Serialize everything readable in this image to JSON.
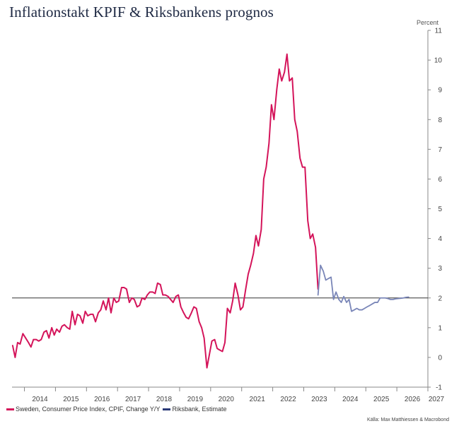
{
  "chart_data": {
    "type": "line",
    "title": "Inflationstakt KPIF & Riksbankens prognos",
    "unit_label": "Percent",
    "source": "Källa: Max Matthiessen & Macrobond",
    "x_range": [
      2013.6,
      2027.0
    ],
    "x_ticks": [
      "2014",
      "2015",
      "2016",
      "2017",
      "2018",
      "2019",
      "2020",
      "2021",
      "2022",
      "2023",
      "2024",
      "2025",
      "2026",
      "2027"
    ],
    "ylim": [
      -1,
      11
    ],
    "y_ticks": [
      "-1",
      "0",
      "1",
      "2",
      "3",
      "4",
      "5",
      "6",
      "7",
      "8",
      "9",
      "10",
      "11"
    ],
    "reference_line": 2,
    "legend_position": "bottom-left",
    "colors": {
      "kpif": "#d4145a",
      "riksbank": "#7a86b8",
      "reference": "#333333",
      "axis": "#888888"
    },
    "series": [
      {
        "name": "Sweden, Consumer Price Index, CPIF, Change Y/Y",
        "color": "#d4145a",
        "points": [
          [
            2013.62,
            0.4
          ],
          [
            2013.7,
            0.0
          ],
          [
            2013.78,
            0.5
          ],
          [
            2013.86,
            0.45
          ],
          [
            2013.95,
            0.8
          ],
          [
            2014.04,
            0.65
          ],
          [
            2014.13,
            0.5
          ],
          [
            2014.21,
            0.35
          ],
          [
            2014.29,
            0.6
          ],
          [
            2014.38,
            0.6
          ],
          [
            2014.46,
            0.55
          ],
          [
            2014.54,
            0.6
          ],
          [
            2014.63,
            0.85
          ],
          [
            2014.71,
            0.9
          ],
          [
            2014.79,
            0.65
          ],
          [
            2014.88,
            1.0
          ],
          [
            2014.96,
            0.75
          ],
          [
            2015.04,
            0.95
          ],
          [
            2015.13,
            0.85
          ],
          [
            2015.21,
            1.05
          ],
          [
            2015.29,
            1.1
          ],
          [
            2015.38,
            1.0
          ],
          [
            2015.46,
            0.95
          ],
          [
            2015.54,
            1.55
          ],
          [
            2015.63,
            1.1
          ],
          [
            2015.71,
            1.45
          ],
          [
            2015.79,
            1.4
          ],
          [
            2015.88,
            1.15
          ],
          [
            2015.96,
            1.55
          ],
          [
            2016.04,
            1.4
          ],
          [
            2016.13,
            1.45
          ],
          [
            2016.21,
            1.45
          ],
          [
            2016.29,
            1.2
          ],
          [
            2016.38,
            1.5
          ],
          [
            2016.46,
            1.6
          ],
          [
            2016.54,
            1.9
          ],
          [
            2016.63,
            1.6
          ],
          [
            2016.71,
            2.0
          ],
          [
            2016.79,
            1.5
          ],
          [
            2016.88,
            2.0
          ],
          [
            2016.96,
            1.85
          ],
          [
            2017.04,
            1.9
          ],
          [
            2017.13,
            2.35
          ],
          [
            2017.21,
            2.35
          ],
          [
            2017.29,
            2.3
          ],
          [
            2017.38,
            1.85
          ],
          [
            2017.46,
            2.0
          ],
          [
            2017.54,
            1.95
          ],
          [
            2017.63,
            1.7
          ],
          [
            2017.71,
            1.75
          ],
          [
            2017.79,
            2.0
          ],
          [
            2017.88,
            1.95
          ],
          [
            2017.96,
            2.1
          ],
          [
            2018.04,
            2.2
          ],
          [
            2018.13,
            2.2
          ],
          [
            2018.21,
            2.15
          ],
          [
            2018.29,
            2.5
          ],
          [
            2018.38,
            2.45
          ],
          [
            2018.46,
            2.1
          ],
          [
            2018.54,
            2.1
          ],
          [
            2018.63,
            2.05
          ],
          [
            2018.71,
            1.95
          ],
          [
            2018.79,
            1.85
          ],
          [
            2018.88,
            2.05
          ],
          [
            2018.96,
            2.1
          ],
          [
            2019.04,
            1.7
          ],
          [
            2019.13,
            1.5
          ],
          [
            2019.21,
            1.35
          ],
          [
            2019.29,
            1.3
          ],
          [
            2019.38,
            1.5
          ],
          [
            2019.46,
            1.7
          ],
          [
            2019.54,
            1.65
          ],
          [
            2019.63,
            1.2
          ],
          [
            2019.71,
            1.0
          ],
          [
            2019.79,
            0.65
          ],
          [
            2019.88,
            -0.35
          ],
          [
            2019.96,
            0.1
          ],
          [
            2020.04,
            0.55
          ],
          [
            2020.13,
            0.6
          ],
          [
            2020.21,
            0.3
          ],
          [
            2020.29,
            0.25
          ],
          [
            2020.38,
            0.2
          ],
          [
            2020.46,
            0.5
          ],
          [
            2020.54,
            1.65
          ],
          [
            2020.63,
            1.5
          ],
          [
            2020.71,
            1.9
          ],
          [
            2020.79,
            2.5
          ],
          [
            2020.88,
            2.1
          ],
          [
            2020.96,
            1.6
          ],
          [
            2021.04,
            1.7
          ],
          [
            2021.13,
            2.3
          ],
          [
            2021.21,
            2.8
          ],
          [
            2021.29,
            3.1
          ],
          [
            2021.38,
            3.5
          ],
          [
            2021.46,
            4.1
          ],
          [
            2021.54,
            3.75
          ],
          [
            2021.63,
            4.3
          ],
          [
            2021.71,
            6.0
          ],
          [
            2021.79,
            6.4
          ],
          [
            2021.88,
            7.2
          ],
          [
            2021.96,
            8.5
          ],
          [
            2022.04,
            8.0
          ],
          [
            2022.13,
            9.0
          ],
          [
            2022.21,
            9.7
          ],
          [
            2022.29,
            9.3
          ],
          [
            2022.38,
            9.6
          ],
          [
            2022.46,
            10.2
          ],
          [
            2022.54,
            9.3
          ],
          [
            2022.63,
            9.4
          ],
          [
            2022.71,
            8.0
          ],
          [
            2022.79,
            7.6
          ],
          [
            2022.88,
            6.7
          ],
          [
            2022.96,
            6.4
          ],
          [
            2023.04,
            6.4
          ],
          [
            2023.13,
            4.6
          ],
          [
            2023.21,
            4.0
          ],
          [
            2023.29,
            4.15
          ],
          [
            2023.38,
            3.7
          ],
          [
            2023.46,
            2.3
          ]
        ]
      },
      {
        "name": "Riksbank, Estimate",
        "color": "#7a86b8",
        "points": [
          [
            2023.46,
            2.1
          ],
          [
            2023.54,
            3.1
          ],
          [
            2023.63,
            2.9
          ],
          [
            2023.71,
            2.6
          ],
          [
            2023.79,
            2.65
          ],
          [
            2023.88,
            2.7
          ],
          [
            2023.96,
            1.95
          ],
          [
            2024.04,
            2.2
          ],
          [
            2024.13,
            1.95
          ],
          [
            2024.21,
            1.85
          ],
          [
            2024.29,
            2.05
          ],
          [
            2024.38,
            1.85
          ],
          [
            2024.46,
            1.95
          ],
          [
            2024.54,
            1.55
          ],
          [
            2024.63,
            1.6
          ],
          [
            2024.71,
            1.65
          ],
          [
            2024.79,
            1.6
          ],
          [
            2024.88,
            1.6
          ],
          [
            2024.96,
            1.65
          ],
          [
            2025.04,
            1.7
          ],
          [
            2025.13,
            1.75
          ],
          [
            2025.21,
            1.8
          ],
          [
            2025.29,
            1.85
          ],
          [
            2025.38,
            1.85
          ],
          [
            2025.46,
            2.0
          ],
          [
            2025.54,
            2.0
          ],
          [
            2025.63,
            2.0
          ],
          [
            2025.71,
            1.98
          ],
          [
            2025.79,
            1.95
          ],
          [
            2025.88,
            1.95
          ],
          [
            2025.96,
            1.97
          ],
          [
            2026.04,
            1.98
          ],
          [
            2026.13,
            1.99
          ],
          [
            2026.21,
            2.0
          ],
          [
            2026.29,
            2.02
          ],
          [
            2026.38,
            2.03
          ]
        ]
      }
    ]
  }
}
